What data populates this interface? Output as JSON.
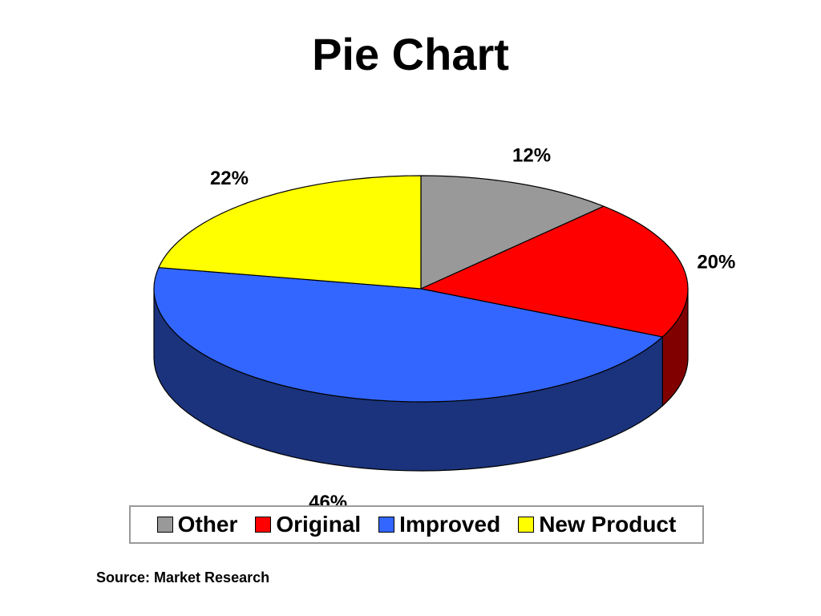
{
  "title": "Pie Chart",
  "source": "Source: Market Research",
  "chart_data": {
    "type": "pie",
    "style": "3d",
    "title": "Pie Chart",
    "legend_position": "bottom",
    "slices": [
      {
        "label": "Other",
        "value": 12,
        "display": "12%",
        "color": "#999999",
        "side_color": "#4d4d4d"
      },
      {
        "label": "Original",
        "value": 20,
        "display": "20%",
        "color": "#ff0000",
        "side_color": "#800000"
      },
      {
        "label": "Improved",
        "value": 46,
        "display": "46%",
        "color": "#3366ff",
        "side_color": "#1b337c"
      },
      {
        "label": "New Product",
        "value": 22,
        "display": "22%",
        "color": "#ffff00",
        "side_color": "#808000"
      }
    ]
  }
}
